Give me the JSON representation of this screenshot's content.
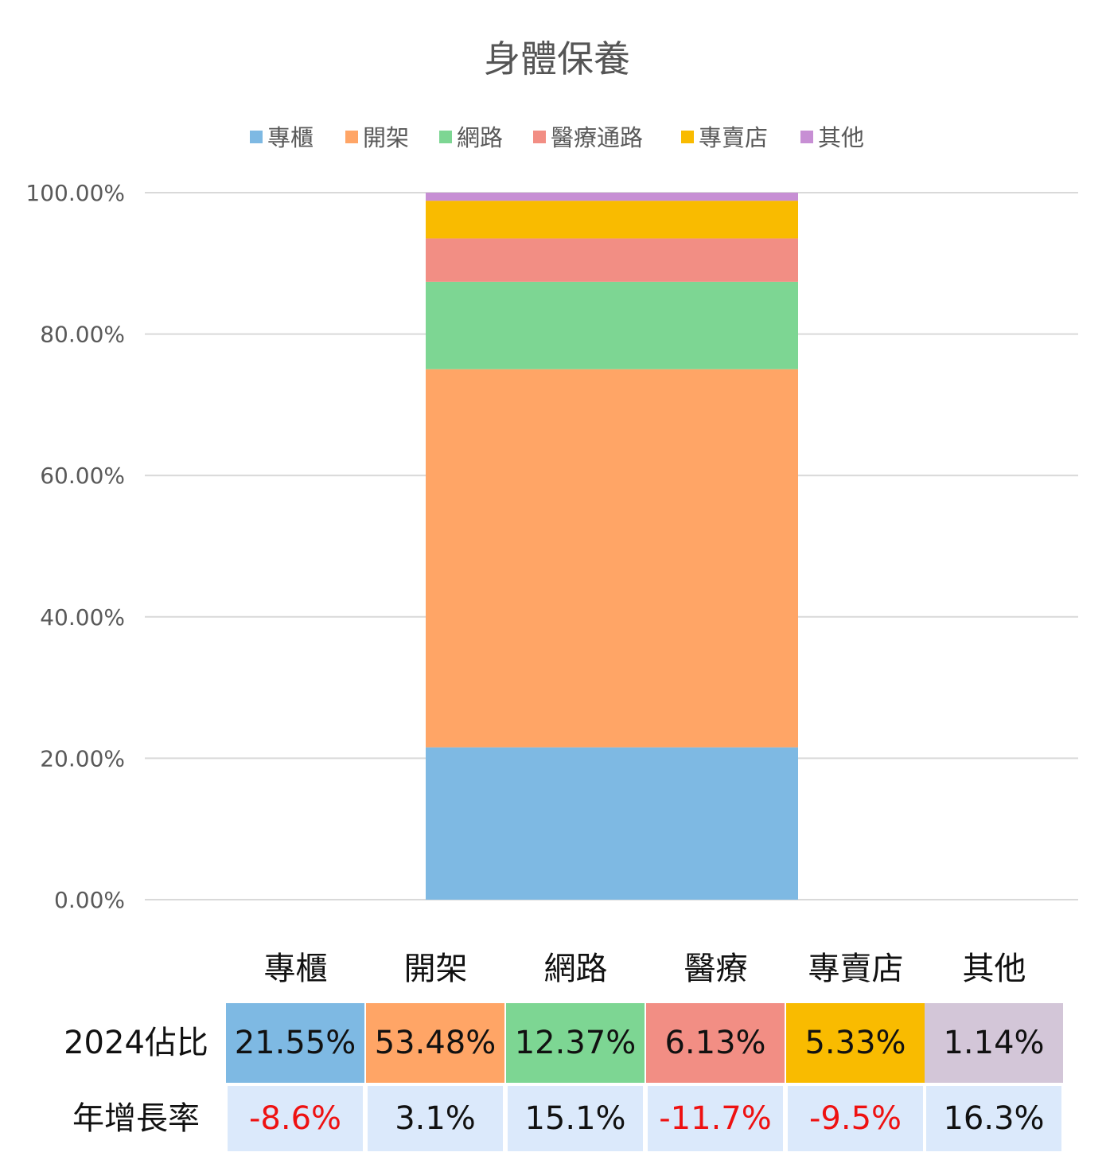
{
  "chart_data": {
    "type": "bar",
    "stacked": true,
    "title": "身體保養",
    "legend_position": "top",
    "ylim": [
      0,
      100
    ],
    "y_ticks": [
      "0.00%",
      "20.00%",
      "40.00%",
      "60.00%",
      "80.00%",
      "100.00%"
    ],
    "grid": true,
    "series": [
      {
        "name": "專櫃",
        "value": 21.55,
        "color": "#7eb9e3"
      },
      {
        "name": "開架",
        "value": 53.48,
        "color": "#ffa566"
      },
      {
        "name": "網路",
        "value": 12.37,
        "color": "#7dd693"
      },
      {
        "name": "醫療通路",
        "value": 6.13,
        "color": "#f28e84"
      },
      {
        "name": "專賣店",
        "value": 5.33,
        "color": "#f9bb00"
      },
      {
        "name": "其他",
        "value": 1.14,
        "color": "#c78fd4"
      }
    ]
  },
  "table": {
    "headers": [
      "專櫃",
      "開架",
      "網路",
      "醫療",
      "專賣店",
      "其他"
    ],
    "share_label": "2024佔比",
    "shares": [
      "21.55%",
      "53.48%",
      "12.37%",
      "6.13%",
      "5.33%",
      "1.14%"
    ],
    "share_colors": [
      "#7eb9e3",
      "#ffa566",
      "#7dd693",
      "#f28e84",
      "#f9bb00",
      "#d3c6d8"
    ],
    "growth_label": "年增長率",
    "growth": [
      "-8.6%",
      "3.1%",
      "15.1%",
      "-11.7%",
      "-9.5%",
      "16.3%"
    ],
    "growth_negative": [
      true,
      false,
      false,
      true,
      true,
      false
    ]
  }
}
